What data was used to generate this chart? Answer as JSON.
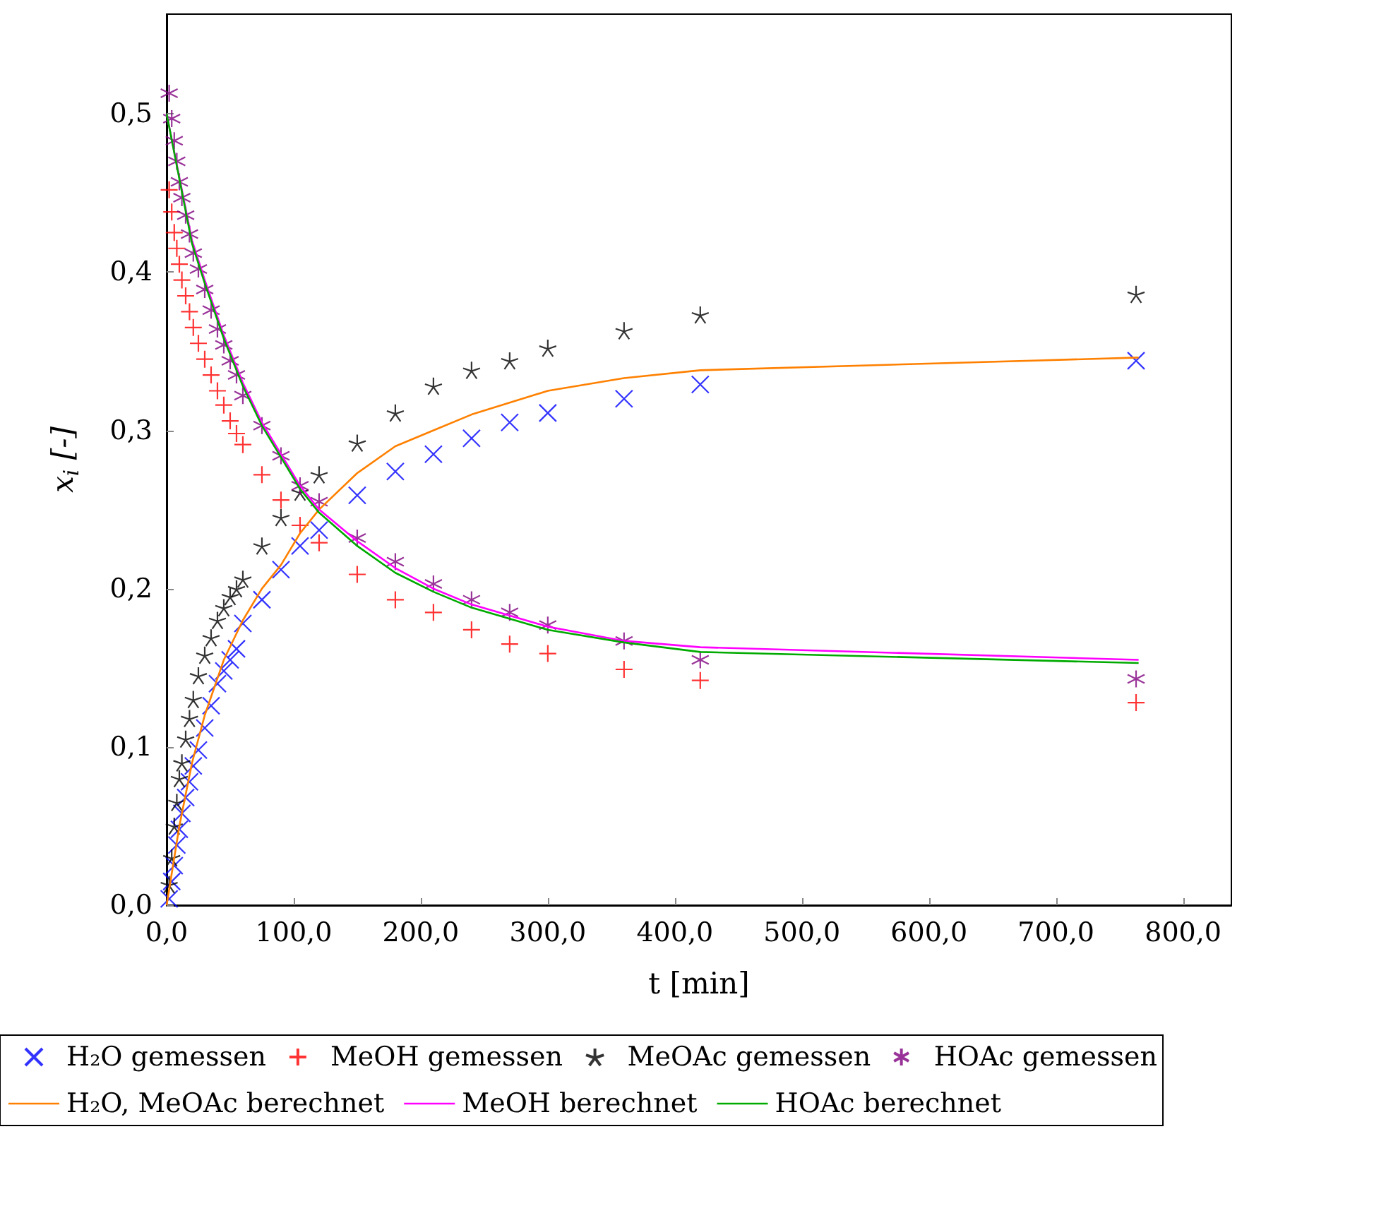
{
  "chart_data": {
    "type": "scatter",
    "xlabel": "t [min]",
    "ylabel": "x$_{i}$ [-]",
    "x": [
      2,
      4,
      6,
      8,
      10,
      12,
      15,
      18,
      21,
      25,
      30,
      35,
      40,
      45,
      50,
      55,
      60,
      75,
      90,
      105,
      120,
      150,
      180,
      210,
      240,
      270,
      300,
      360,
      420,
      763
    ],
    "xlim": [
      0,
      838
    ],
    "ylim": [
      0,
      0.563
    ],
    "xticks": [
      {
        "value": 0,
        "label": "0,0"
      },
      {
        "value": 100,
        "label": "100,0"
      },
      {
        "value": 200,
        "label": "200,0"
      },
      {
        "value": 300,
        "label": "300,0"
      },
      {
        "value": 400,
        "label": "400,0"
      },
      {
        "value": 500,
        "label": "500,0"
      },
      {
        "value": 600,
        "label": "600,0"
      },
      {
        "value": 700,
        "label": "700,0"
      },
      {
        "value": 800,
        "label": "800,0"
      }
    ],
    "yticks": [
      {
        "value": 0,
        "label": "0,0"
      },
      {
        "value": 0.1,
        "label": "0,1"
      },
      {
        "value": 0.2,
        "label": "0,2"
      },
      {
        "value": 0.3,
        "label": "0,3"
      },
      {
        "value": 0.4,
        "label": "0,4"
      },
      {
        "value": 0.5,
        "label": "0,5"
      }
    ],
    "grid": false,
    "legend": "bottom",
    "series": [
      {
        "name": "H₂O gemessen",
        "color": "#0000ff",
        "marker": "cross",
        "values": [
          0.004,
          0.015,
          0.025,
          0.038,
          0.048,
          0.058,
          0.068,
          0.078,
          0.088,
          0.098,
          0.112,
          0.126,
          0.14,
          0.148,
          0.155,
          0.162,
          0.178,
          0.193,
          0.212,
          0.227,
          0.237,
          0.259,
          0.274,
          0.285,
          0.295,
          0.305,
          0.311,
          0.32,
          0.329,
          0.344
        ]
      },
      {
        "name": "MeOH gemessen",
        "color": "#ff0000",
        "marker": "cross",
        "values": [
          0.452,
          0.438,
          0.425,
          0.415,
          0.405,
          0.395,
          0.385,
          0.375,
          0.365,
          0.355,
          0.345,
          0.335,
          0.325,
          0.316,
          0.306,
          0.298,
          0.291,
          0.272,
          0.256,
          0.24,
          0.229,
          0.209,
          0.193,
          0.185,
          0.174,
          0.165,
          0.159,
          0.149,
          0.142,
          0.128
        ]
      },
      {
        "name": "MeOAc gemessen",
        "color": "#000000",
        "marker": "cross",
        "values": [
          0.013,
          0.03,
          0.05,
          0.065,
          0.08,
          0.09,
          0.105,
          0.118,
          0.13,
          0.145,
          0.158,
          0.169,
          0.18,
          0.188,
          0.195,
          0.2,
          0.206,
          0.227,
          0.245,
          0.261,
          0.272,
          0.292,
          0.311,
          0.328,
          0.338,
          0.344,
          0.352,
          0.363,
          0.373,
          0.386
        ]
      },
      {
        "name": "HOAc gemessen",
        "color": "#800080",
        "marker": "cross",
        "values": [
          0.513,
          0.497,
          0.483,
          0.47,
          0.457,
          0.447,
          0.436,
          0.424,
          0.412,
          0.402,
          0.389,
          0.376,
          0.364,
          0.354,
          0.344,
          0.335,
          0.322,
          0.303,
          0.284,
          0.265,
          0.255,
          0.232,
          0.217,
          0.203,
          0.193,
          0.185,
          0.177,
          0.167,
          0.155,
          0.143
        ]
      },
      {
        "name": "H₂O, MeOAc berechnet",
        "type": "line",
        "color": "#ff8000",
        "marker": "none",
        "x": [
          0,
          10,
          20,
          30,
          45,
          60,
          75,
          90,
          105,
          120,
          150,
          180,
          210,
          240,
          300,
          360,
          420,
          765
        ],
        "values": [
          0,
          0.05,
          0.09,
          0.12,
          0.155,
          0.18,
          0.2,
          0.215,
          0.235,
          0.25,
          0.273,
          0.29,
          0.3,
          0.31,
          0.325,
          0.333,
          0.338,
          0.346
        ]
      },
      {
        "name": "MeOH berechnet",
        "type": "line",
        "color": "#ff00ff",
        "marker": "none",
        "x": [
          0,
          10,
          20,
          30,
          45,
          60,
          75,
          90,
          105,
          120,
          150,
          180,
          210,
          240,
          300,
          360,
          420,
          765
        ],
        "values": [
          0.5,
          0.46,
          0.42,
          0.395,
          0.36,
          0.33,
          0.305,
          0.285,
          0.265,
          0.25,
          0.23,
          0.213,
          0.2,
          0.19,
          0.176,
          0.167,
          0.163,
          0.155
        ]
      },
      {
        "name": "HOAc berechnet",
        "type": "line",
        "color": "#00aa00",
        "marker": "none",
        "x": [
          0,
          10,
          20,
          30,
          45,
          60,
          75,
          90,
          105,
          120,
          150,
          180,
          210,
          240,
          300,
          360,
          420,
          765
        ],
        "values": [
          0.5,
          0.459,
          0.418,
          0.393,
          0.358,
          0.328,
          0.303,
          0.283,
          0.263,
          0.248,
          0.227,
          0.21,
          0.198,
          0.188,
          0.174,
          0.166,
          0.16,
          0.153
        ]
      }
    ]
  }
}
